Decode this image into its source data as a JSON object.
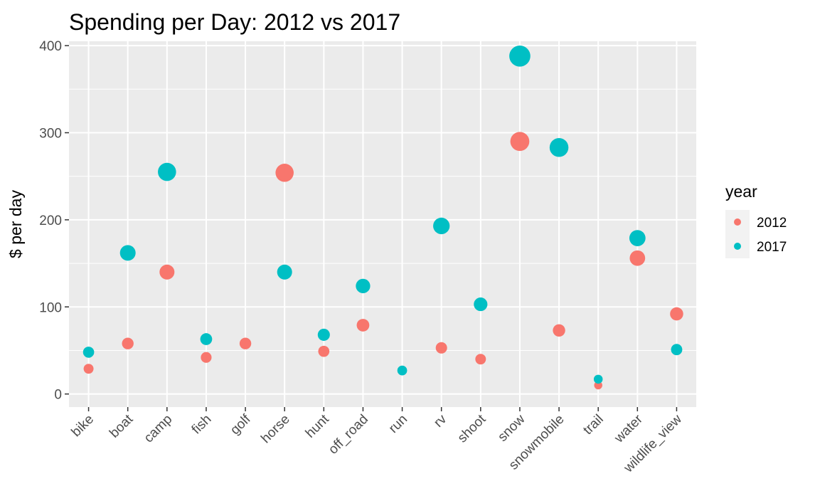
{
  "chart_data": {
    "type": "scatter",
    "title": "Spending per Day: 2012 vs 2017",
    "xlabel": "",
    "ylabel": "$ per day",
    "ylim": [
      -15,
      405
    ],
    "yticks": [
      0,
      100,
      200,
      300,
      400
    ],
    "grid": true,
    "legend_position": "right",
    "legend_title": "year",
    "categories": [
      "bike",
      "boat",
      "camp",
      "fish",
      "golf",
      "horse",
      "hunt",
      "off_road",
      "run",
      "rv",
      "shoot",
      "snow",
      "snowmobile",
      "trail",
      "water",
      "wildlife_view"
    ],
    "series": [
      {
        "name": "2012",
        "color": "#F8766D",
        "values": [
          29,
          58,
          140,
          42,
          58,
          254,
          49,
          79,
          null,
          53,
          40,
          290,
          73,
          10,
          156,
          92
        ]
      },
      {
        "name": "2017",
        "color": "#00BFC4",
        "values": [
          48,
          162,
          255,
          63,
          null,
          140,
          68,
          124,
          27,
          193,
          103,
          388,
          283,
          17,
          179,
          51
        ]
      }
    ]
  }
}
